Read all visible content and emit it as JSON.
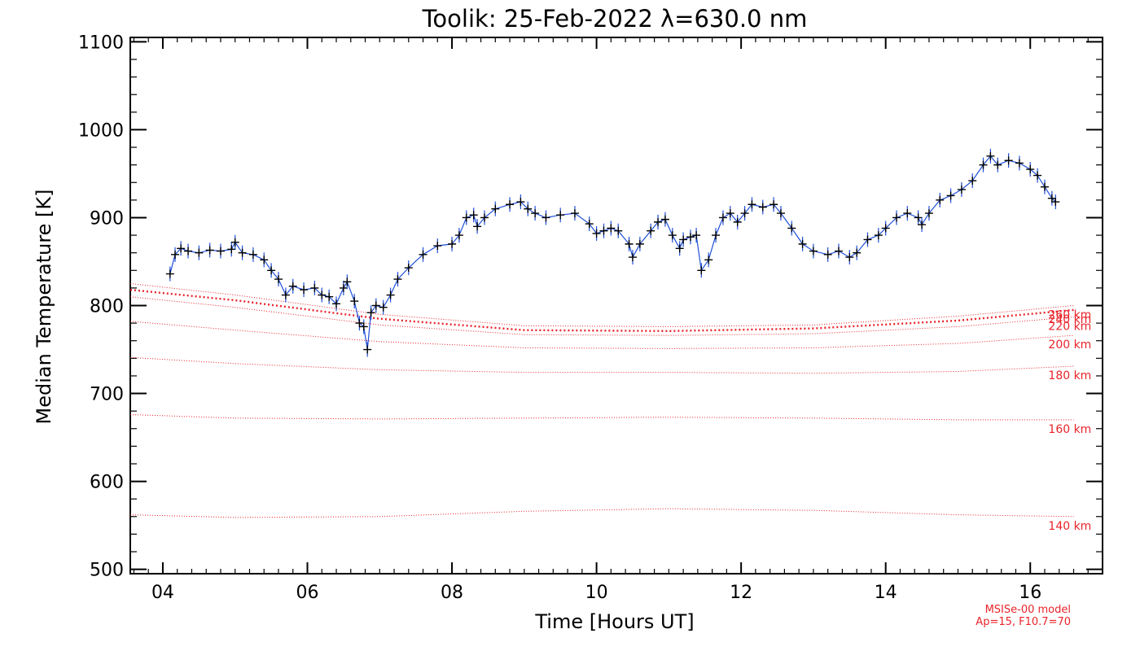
{
  "chart_data": {
    "type": "line",
    "title": "Toolik: 25-Feb-2022 λ=630.0 nm",
    "xlabel": "Time [Hours UT]",
    "ylabel": "Median Temperature [K]",
    "xlim": [
      3.55,
      17.0
    ],
    "ylim": [
      495,
      1105
    ],
    "xticks": [
      4,
      6,
      8,
      10,
      12,
      14,
      16
    ],
    "xtick_labels": [
      "04",
      "06",
      "08",
      "10",
      "12",
      "14",
      "16"
    ],
    "yticks": [
      500,
      600,
      700,
      800,
      900,
      1000,
      1100
    ],
    "ytick_labels": [
      "500",
      "600",
      "700",
      "800",
      "900",
      "1000",
      "1100"
    ],
    "grid": false,
    "colors": {
      "measured": "#000000",
      "error_bars": "#1f4fd8",
      "model": "#e8232a"
    },
    "measured": {
      "name": "",
      "marker": "plus",
      "points": [
        [
          4.1,
          836
        ],
        [
          4.17,
          858
        ],
        [
          4.25,
          865
        ],
        [
          4.35,
          862
        ],
        [
          4.5,
          860
        ],
        [
          4.65,
          863
        ],
        [
          4.8,
          862
        ],
        [
          4.95,
          864
        ],
        [
          5.0,
          872
        ],
        [
          5.1,
          860
        ],
        [
          5.25,
          858
        ],
        [
          5.4,
          852
        ],
        [
          5.5,
          840
        ],
        [
          5.6,
          830
        ],
        [
          5.7,
          812
        ],
        [
          5.8,
          822
        ],
        [
          5.95,
          818
        ],
        [
          6.1,
          820
        ],
        [
          6.2,
          812
        ],
        [
          6.3,
          810
        ],
        [
          6.4,
          802
        ],
        [
          6.5,
          820
        ],
        [
          6.55,
          827
        ],
        [
          6.65,
          805
        ],
        [
          6.72,
          780
        ],
        [
          6.78,
          776
        ],
        [
          6.83,
          750
        ],
        [
          6.88,
          792
        ],
        [
          6.95,
          800
        ],
        [
          7.05,
          798
        ],
        [
          7.15,
          812
        ],
        [
          7.25,
          830
        ],
        [
          7.4,
          843
        ],
        [
          7.6,
          858
        ],
        [
          7.8,
          868
        ],
        [
          8.0,
          870
        ],
        [
          8.1,
          880
        ],
        [
          8.2,
          900
        ],
        [
          8.3,
          903
        ],
        [
          8.35,
          890
        ],
        [
          8.45,
          900
        ],
        [
          8.6,
          910
        ],
        [
          8.8,
          915
        ],
        [
          8.95,
          918
        ],
        [
          9.05,
          910
        ],
        [
          9.15,
          905
        ],
        [
          9.3,
          900
        ],
        [
          9.5,
          903
        ],
        [
          9.7,
          905
        ],
        [
          9.9,
          893
        ],
        [
          10.0,
          882
        ],
        [
          10.1,
          885
        ],
        [
          10.2,
          888
        ],
        [
          10.3,
          885
        ],
        [
          10.45,
          870
        ],
        [
          10.5,
          855
        ],
        [
          10.6,
          870
        ],
        [
          10.75,
          885
        ],
        [
          10.85,
          895
        ],
        [
          10.95,
          898
        ],
        [
          11.05,
          880
        ],
        [
          11.15,
          865
        ],
        [
          11.2,
          875
        ],
        [
          11.3,
          878
        ],
        [
          11.38,
          880
        ],
        [
          11.45,
          840
        ],
        [
          11.55,
          852
        ],
        [
          11.65,
          880
        ],
        [
          11.75,
          900
        ],
        [
          11.85,
          905
        ],
        [
          11.95,
          895
        ],
        [
          12.05,
          905
        ],
        [
          12.15,
          915
        ],
        [
          12.3,
          912
        ],
        [
          12.45,
          915
        ],
        [
          12.55,
          905
        ],
        [
          12.7,
          888
        ],
        [
          12.85,
          870
        ],
        [
          13.0,
          862
        ],
        [
          13.2,
          858
        ],
        [
          13.35,
          862
        ],
        [
          13.5,
          855
        ],
        [
          13.6,
          860
        ],
        [
          13.75,
          875
        ],
        [
          13.9,
          880
        ],
        [
          14.0,
          888
        ],
        [
          14.15,
          900
        ],
        [
          14.3,
          905
        ],
        [
          14.45,
          900
        ],
        [
          14.5,
          892
        ],
        [
          14.6,
          905
        ],
        [
          14.75,
          920
        ],
        [
          14.9,
          925
        ],
        [
          15.05,
          932
        ],
        [
          15.2,
          942
        ],
        [
          15.35,
          960
        ],
        [
          15.45,
          970
        ],
        [
          15.55,
          960
        ],
        [
          15.7,
          965
        ],
        [
          15.85,
          962
        ],
        [
          16.0,
          955
        ],
        [
          16.1,
          948
        ],
        [
          16.2,
          935
        ],
        [
          16.3,
          922
        ],
        [
          16.35,
          918
        ]
      ]
    },
    "model": {
      "name": "MSISe-00 model",
      "note": "Ap=15, F10.7=70",
      "x": [
        3.55,
        5.0,
        7.0,
        9.0,
        11.0,
        13.0,
        15.0,
        16.6
      ],
      "series": [
        {
          "name": "260 km",
          "values": [
            825,
            812,
            790,
            777,
            776,
            778,
            788,
            800
          ]
        },
        {
          "name": "240 km",
          "values": [
            818,
            806,
            785,
            772,
            771,
            774,
            783,
            795
          ]
        },
        {
          "name": "220 km",
          "values": [
            810,
            798,
            778,
            767,
            766,
            768,
            776,
            787
          ]
        },
        {
          "name": "200 km",
          "values": [
            782,
            772,
            759,
            752,
            751,
            752,
            757,
            766
          ]
        },
        {
          "name": "180 km",
          "values": [
            741,
            734,
            727,
            724,
            724,
            723,
            725,
            731
          ]
        },
        {
          "name": "160 km",
          "values": [
            676,
            672,
            671,
            672,
            673,
            672,
            670,
            670
          ]
        },
        {
          "name": "140 km",
          "values": [
            562,
            559,
            560,
            566,
            569,
            567,
            562,
            560
          ]
        }
      ],
      "thick_series": "240 km"
    }
  }
}
